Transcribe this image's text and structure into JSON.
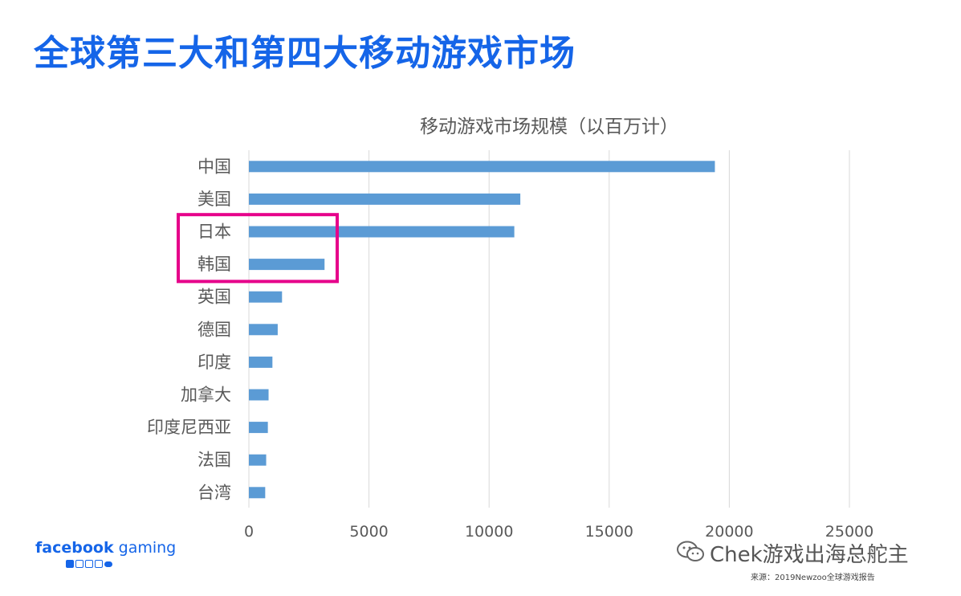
{
  "page": {
    "title": "全球第三大和第四大移动游戏市场"
  },
  "chart_data": {
    "type": "bar",
    "orientation": "horizontal",
    "title": "移动游戏市场规模（以百万计）",
    "categories": [
      "中国",
      "美国",
      "日本",
      "韩国",
      "英国",
      "德国",
      "印度",
      "加拿大",
      "印度尼西亚",
      "法国",
      "台湾"
    ],
    "values": [
      19400,
      11300,
      11050,
      3150,
      1380,
      1200,
      980,
      820,
      790,
      720,
      680
    ],
    "xlim": [
      0,
      25000
    ],
    "xticks": [
      0,
      5000,
      10000,
      15000,
      20000,
      25000
    ],
    "xtick_labels": [
      "0",
      "5000",
      "10000",
      "15000",
      "20000",
      "25000"
    ],
    "grid": true,
    "bar_color": "#5b9bd5",
    "highlight": {
      "categories": [
        "日本",
        "韩国"
      ],
      "color": "#e6008a"
    }
  },
  "footer": {
    "brand_bold": "facebook",
    "brand_light": " gaming",
    "watermark": "Chek游戏出海总舵主",
    "source": "来源：2019Newzoo全球游戏报告"
  },
  "colors": {
    "title": "#1565e8",
    "text": "#595959",
    "grid": "#d9d9d9"
  }
}
